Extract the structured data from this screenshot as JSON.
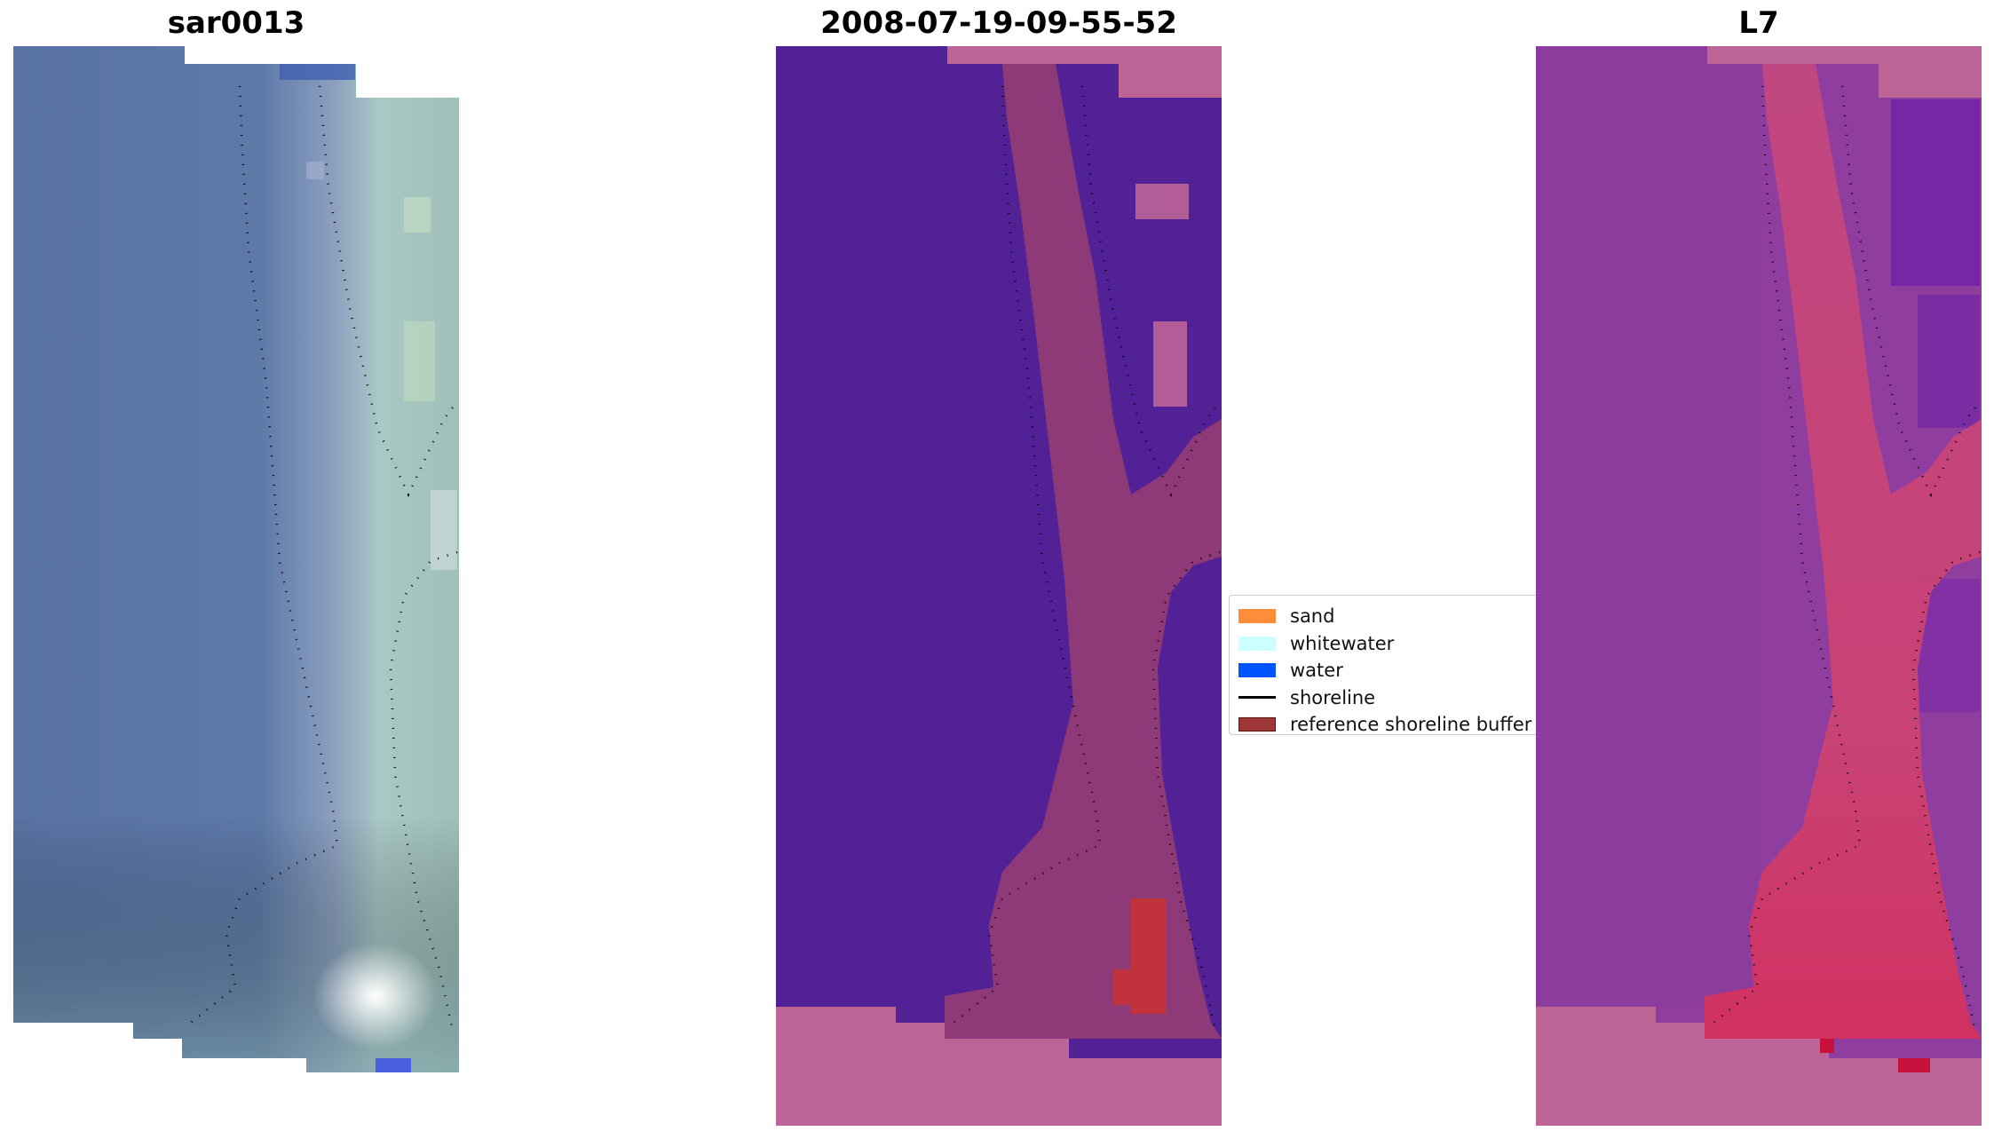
{
  "panels": [
    {
      "title": "sar0013"
    },
    {
      "title": "2008-07-19-09-55-52"
    },
    {
      "title": "L7"
    }
  ],
  "legend": {
    "items": [
      {
        "label": "sand",
        "color": "#ff8c3a",
        "kind": "patch"
      },
      {
        "label": "whitewater",
        "color": "#ccffff",
        "kind": "patch"
      },
      {
        "label": "water",
        "color": "#0055ff",
        "kind": "patch"
      },
      {
        "label": "shoreline",
        "color": "#000000",
        "kind": "line"
      },
      {
        "label": "reference shoreline buffer",
        "color": "#a03535",
        "kind": "patch"
      }
    ]
  },
  "colors": {
    "rgb_sea": "#5a76a6",
    "rgb_land": "#9ec4b8",
    "class_water": "#532196",
    "class_sand_overlay": "#8e3a78",
    "class_nodata": "#bd6497",
    "mndwi_base": "#8f3ea0",
    "mndwi_high": "#d43c6a"
  }
}
